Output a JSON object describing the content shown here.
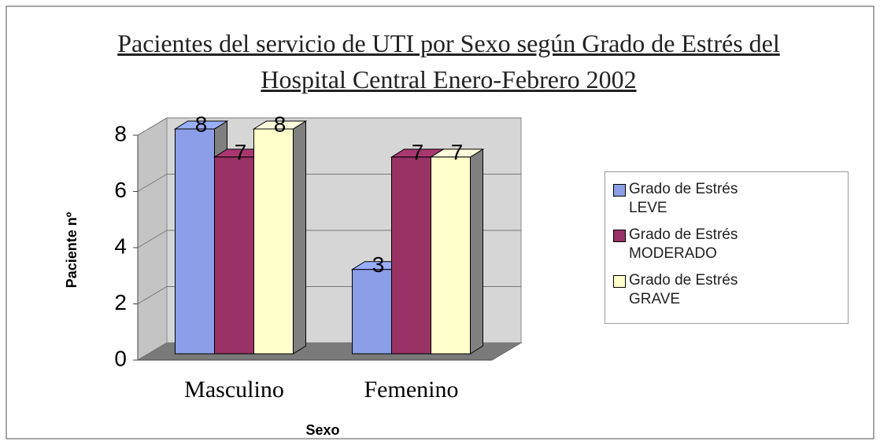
{
  "chart_data": {
    "type": "bar3d",
    "title": "Pacientes del servicio de UTI por Sexo según Grado de Estrés del Hospital Central Enero-Febrero 2002",
    "x_label": "Sexo",
    "y_label": "Paciente nº",
    "categories": [
      "Masculino",
      "Femenino"
    ],
    "series": [
      {
        "name": "Grado de Estrés LEVE",
        "color": "#8c9ee8",
        "values": [
          8,
          3
        ]
      },
      {
        "name": "Grado de Estrés MODERADO",
        "color": "#993366",
        "values": [
          7,
          7
        ]
      },
      {
        "name": "Grado de Estrés GRAVE",
        "color": "#ffffcc",
        "values": [
          8,
          7
        ]
      }
    ],
    "ylim": [
      0,
      8
    ],
    "yticks": [
      0,
      2,
      4,
      6,
      8
    ],
    "grid": true,
    "legend": "right"
  }
}
